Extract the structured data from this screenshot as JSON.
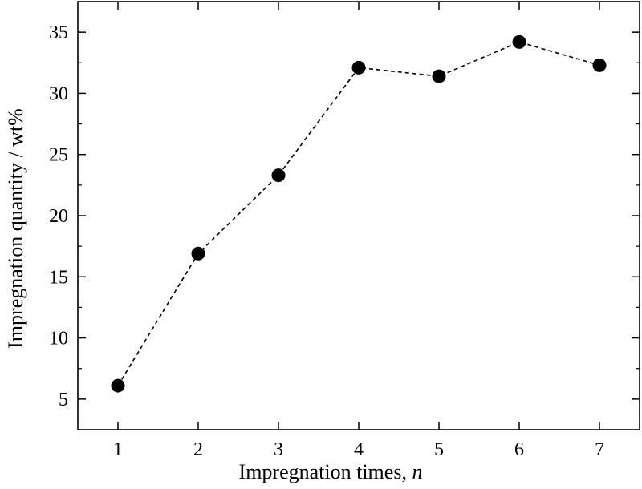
{
  "chart_data": {
    "type": "line",
    "xlabel": "Impregnation times, ",
    "xlabel_italic": "n",
    "ylabel": "Impregnation quantity / wt%",
    "xlim": [
      0.5,
      7.5
    ],
    "ylim": [
      2.5,
      37.5
    ],
    "x_ticks": [
      1,
      2,
      3,
      4,
      5,
      6,
      7
    ],
    "y_ticks": [
      5,
      10,
      15,
      20,
      25,
      30,
      35
    ],
    "x_tick_labels": [
      "1",
      "2",
      "3",
      "4",
      "5",
      "6",
      "7"
    ],
    "y_tick_labels": [
      "5",
      "10",
      "15",
      "20",
      "25",
      "30",
      "35"
    ],
    "line_style": "dashed",
    "marker": "filled-circle",
    "grid": false,
    "series": [
      {
        "x": [
          1,
          2,
          3,
          4,
          5,
          6,
          7
        ],
        "values": [
          6.1,
          16.9,
          23.3,
          32.1,
          31.4,
          34.2,
          32.3
        ]
      }
    ]
  }
}
